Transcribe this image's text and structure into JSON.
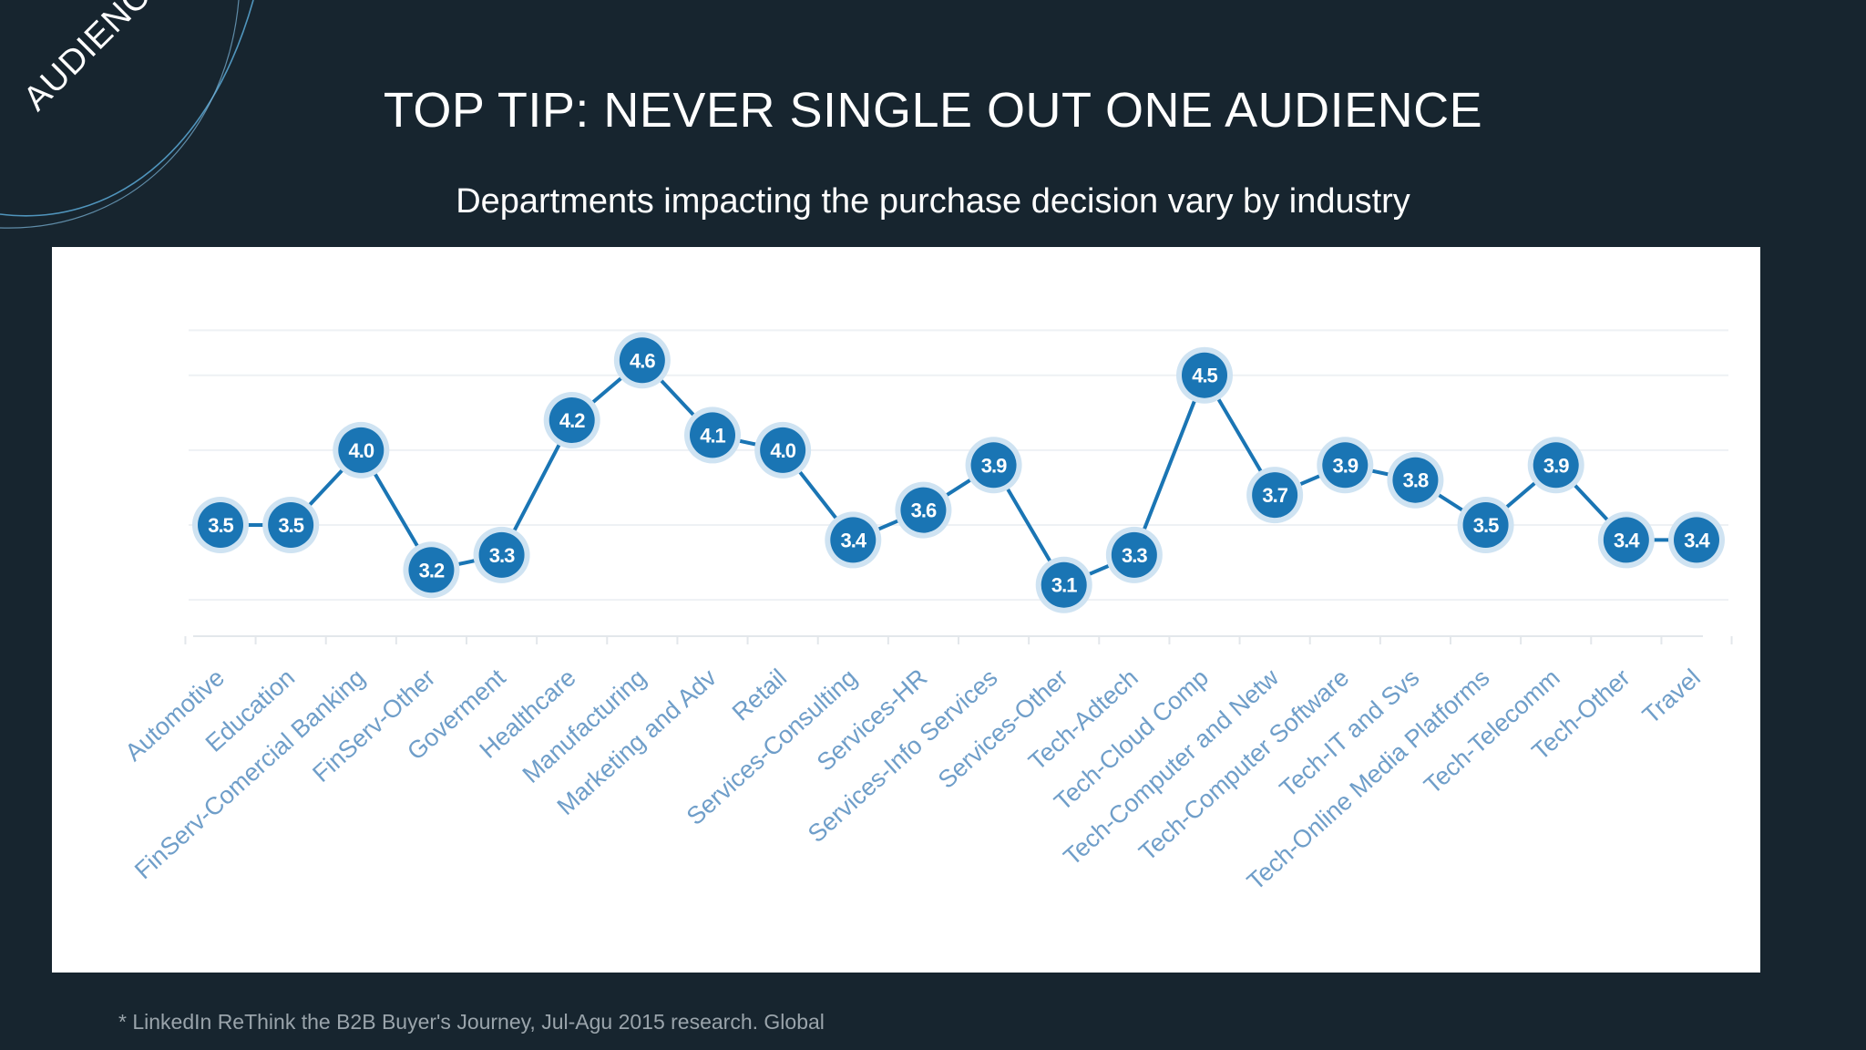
{
  "slide": {
    "section_tag": "AUDIENCE",
    "title": "TOP TIP: NEVER SINGLE OUT ONE AUDIENCE",
    "subtitle": "Departments impacting the purchase decision vary by industry",
    "footnote": "* LinkedIn ReThink the B2B Buyer's Journey, Jul-Agu 2015 research. Global"
  },
  "colors": {
    "background": "#17252f",
    "accent": "#1a75b4",
    "marker_halo": "#cfe3f2",
    "label_text": "#6f9ec9"
  },
  "chart_data": {
    "type": "line",
    "categories": [
      "Automotive",
      "Education",
      "FinServ-Comercial Banking",
      "FinServ-Other",
      "Goverment",
      "Healthcare",
      "Manufacturing",
      "Marketing and Adv",
      "Retail",
      "Services-Consulting",
      "Services-HR",
      "Services-Info Services",
      "Services-Other",
      "Tech-Adtech",
      "Tech-Cloud Comp",
      "Tech-Computer and Netw",
      "Tech-Computer Software",
      "Tech-IT and Svs",
      "Tech-Online Media Platforms",
      "Tech-Telecomm",
      "Tech-Other",
      "Travel"
    ],
    "values": [
      3.5,
      3.5,
      4.0,
      3.2,
      3.3,
      4.2,
      4.6,
      4.1,
      4.0,
      3.4,
      3.6,
      3.9,
      3.1,
      3.3,
      4.5,
      3.7,
      3.9,
      3.8,
      3.5,
      3.9,
      3.4,
      3.4
    ],
    "value_labels": [
      "3.5",
      "3.5",
      "4.0",
      "3.2",
      "3.3",
      "4.2",
      "4.6",
      "4.1",
      "4.0",
      "3.4",
      "3.6",
      "3.9",
      "3.1",
      "3.3",
      "4.5",
      "3.7",
      "3.9",
      "3.8",
      "3.5",
      "3.9",
      "3.4",
      "3.4"
    ],
    "ylim": [
      2.8,
      4.9
    ],
    "grid": true,
    "legend": false
  }
}
